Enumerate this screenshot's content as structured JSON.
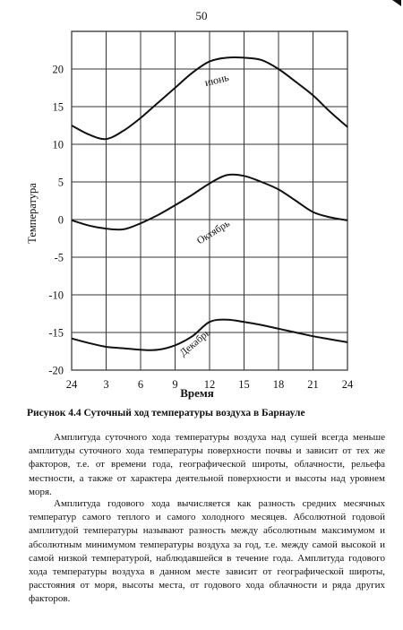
{
  "page": {
    "number": "50",
    "caption": "Рисунок 4.4  Суточный ход температуры воздуха в Барнауле",
    "paragraphs": [
      "Амплитуда суточного хода температуры воздуха над сушей всегда меньше амплитуды суточного хода температуры поверхности почвы и зависит от тех же факторов, т.е. от времени года, географической широты, облачности, рельефа местности, а также от характера деятельной поверхности и высоты над уровнем моря.",
      "Амплитуда годового хода вычисляется как разность средних месячных температур самого теплого и самого холодного месяцев. Абсолютной годовой амплитудой температуры называют разность между абсолютным максимумом и абсолютным минимумом температуры воздуха за год, т.е. между самой высокой и самой низкой температурой, наблюдавшейся в течение года. Амплитуда годового хода температуры воздуха в данном месте зависит от географической широты, расстояния от моря, высоты места, от годового хода облачности и ряда других факторов."
    ]
  },
  "chart_data": {
    "type": "line",
    "title": "",
    "xlabel": "Время",
    "ylabel": "Температура",
    "xticks": [
      "24",
      "3",
      "6",
      "9",
      "12",
      "15",
      "18",
      "21",
      "24"
    ],
    "yticks": [
      "-20",
      "-15",
      "-10",
      "-5",
      "0",
      "5",
      "10",
      "15",
      "20"
    ],
    "ylim": [
      -20,
      25
    ],
    "grid": true,
    "x": [
      0,
      1.5,
      3,
      4.5,
      6,
      7.5,
      9,
      10.5,
      12,
      13.5,
      15,
      16.5,
      18,
      19.5,
      21,
      22.5,
      24
    ],
    "series": [
      {
        "name": "июнь",
        "values": [
          12.5,
          11.3,
          10.7,
          11.8,
          13.5,
          15.5,
          17.5,
          19.5,
          21.0,
          21.5,
          21.5,
          21.2,
          20.0,
          18.3,
          16.5,
          14.3,
          12.3
        ]
      },
      {
        "name": "Октябрь",
        "values": [
          -0.1,
          -0.8,
          -1.2,
          -1.3,
          -0.5,
          0.6,
          1.9,
          3.3,
          4.8,
          5.9,
          5.8,
          5.0,
          4.0,
          2.5,
          1.0,
          0.3,
          -0.1
        ]
      },
      {
        "name": "Декабрь",
        "values": [
          -15.8,
          -16.4,
          -16.9,
          -17.1,
          -17.3,
          -17.3,
          -16.7,
          -15.5,
          -13.6,
          -13.3,
          -13.6,
          -14.0,
          -14.5,
          -15.0,
          -15.5,
          -15.9,
          -16.3
        ]
      }
    ]
  }
}
